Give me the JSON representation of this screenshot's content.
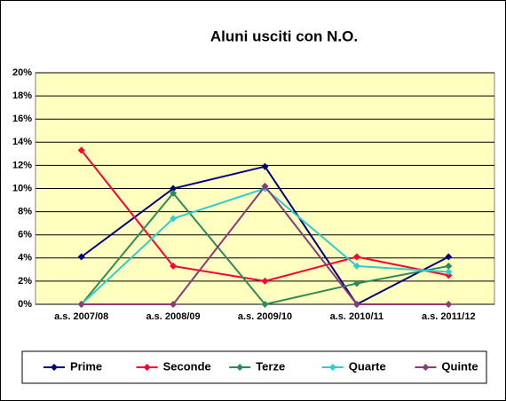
{
  "chart_data": {
    "type": "line",
    "title": "Aluni usciti con N.O.",
    "categories": [
      "a.s. 2007/08",
      "a.s. 2008/09",
      "a.s. 2009/10",
      "a.s. 2010/11",
      "a.s. 2011/12"
    ],
    "series": [
      {
        "name": "Prime",
        "color": "#000080",
        "values": [
          4.1,
          10.0,
          11.9,
          0,
          4.1
        ]
      },
      {
        "name": "Seconde",
        "color": "#ff0033",
        "values": [
          13.3,
          3.3,
          2.0,
          4.1,
          2.5
        ]
      },
      {
        "name": "Terze",
        "color": "#2e8b57",
        "values": [
          0,
          9.6,
          0,
          1.8,
          3.3
        ]
      },
      {
        "name": "Quarte",
        "color": "#33cccc",
        "values": [
          0,
          7.4,
          10.0,
          3.3,
          2.8
        ]
      },
      {
        "name": "Quinte",
        "color": "#8b3a7a",
        "values": [
          0,
          0,
          10.2,
          0,
          0
        ]
      }
    ],
    "ylim": [
      0,
      20
    ],
    "yticks": [
      {
        "value": 0,
        "label": "0%"
      },
      {
        "value": 2,
        "label": "2%"
      },
      {
        "value": 4,
        "label": "4%"
      },
      {
        "value": 6,
        "label": "6%"
      },
      {
        "value": 8,
        "label": "8%"
      },
      {
        "value": 10,
        "label": "10%"
      },
      {
        "value": 12,
        "label": "12%"
      },
      {
        "value": 14,
        "label": "14%"
      },
      {
        "value": 16,
        "label": "16%"
      },
      {
        "value": 18,
        "label": "18%"
      },
      {
        "value": 20,
        "label": "20%"
      }
    ],
    "grid": true,
    "legend": "bottom"
  }
}
